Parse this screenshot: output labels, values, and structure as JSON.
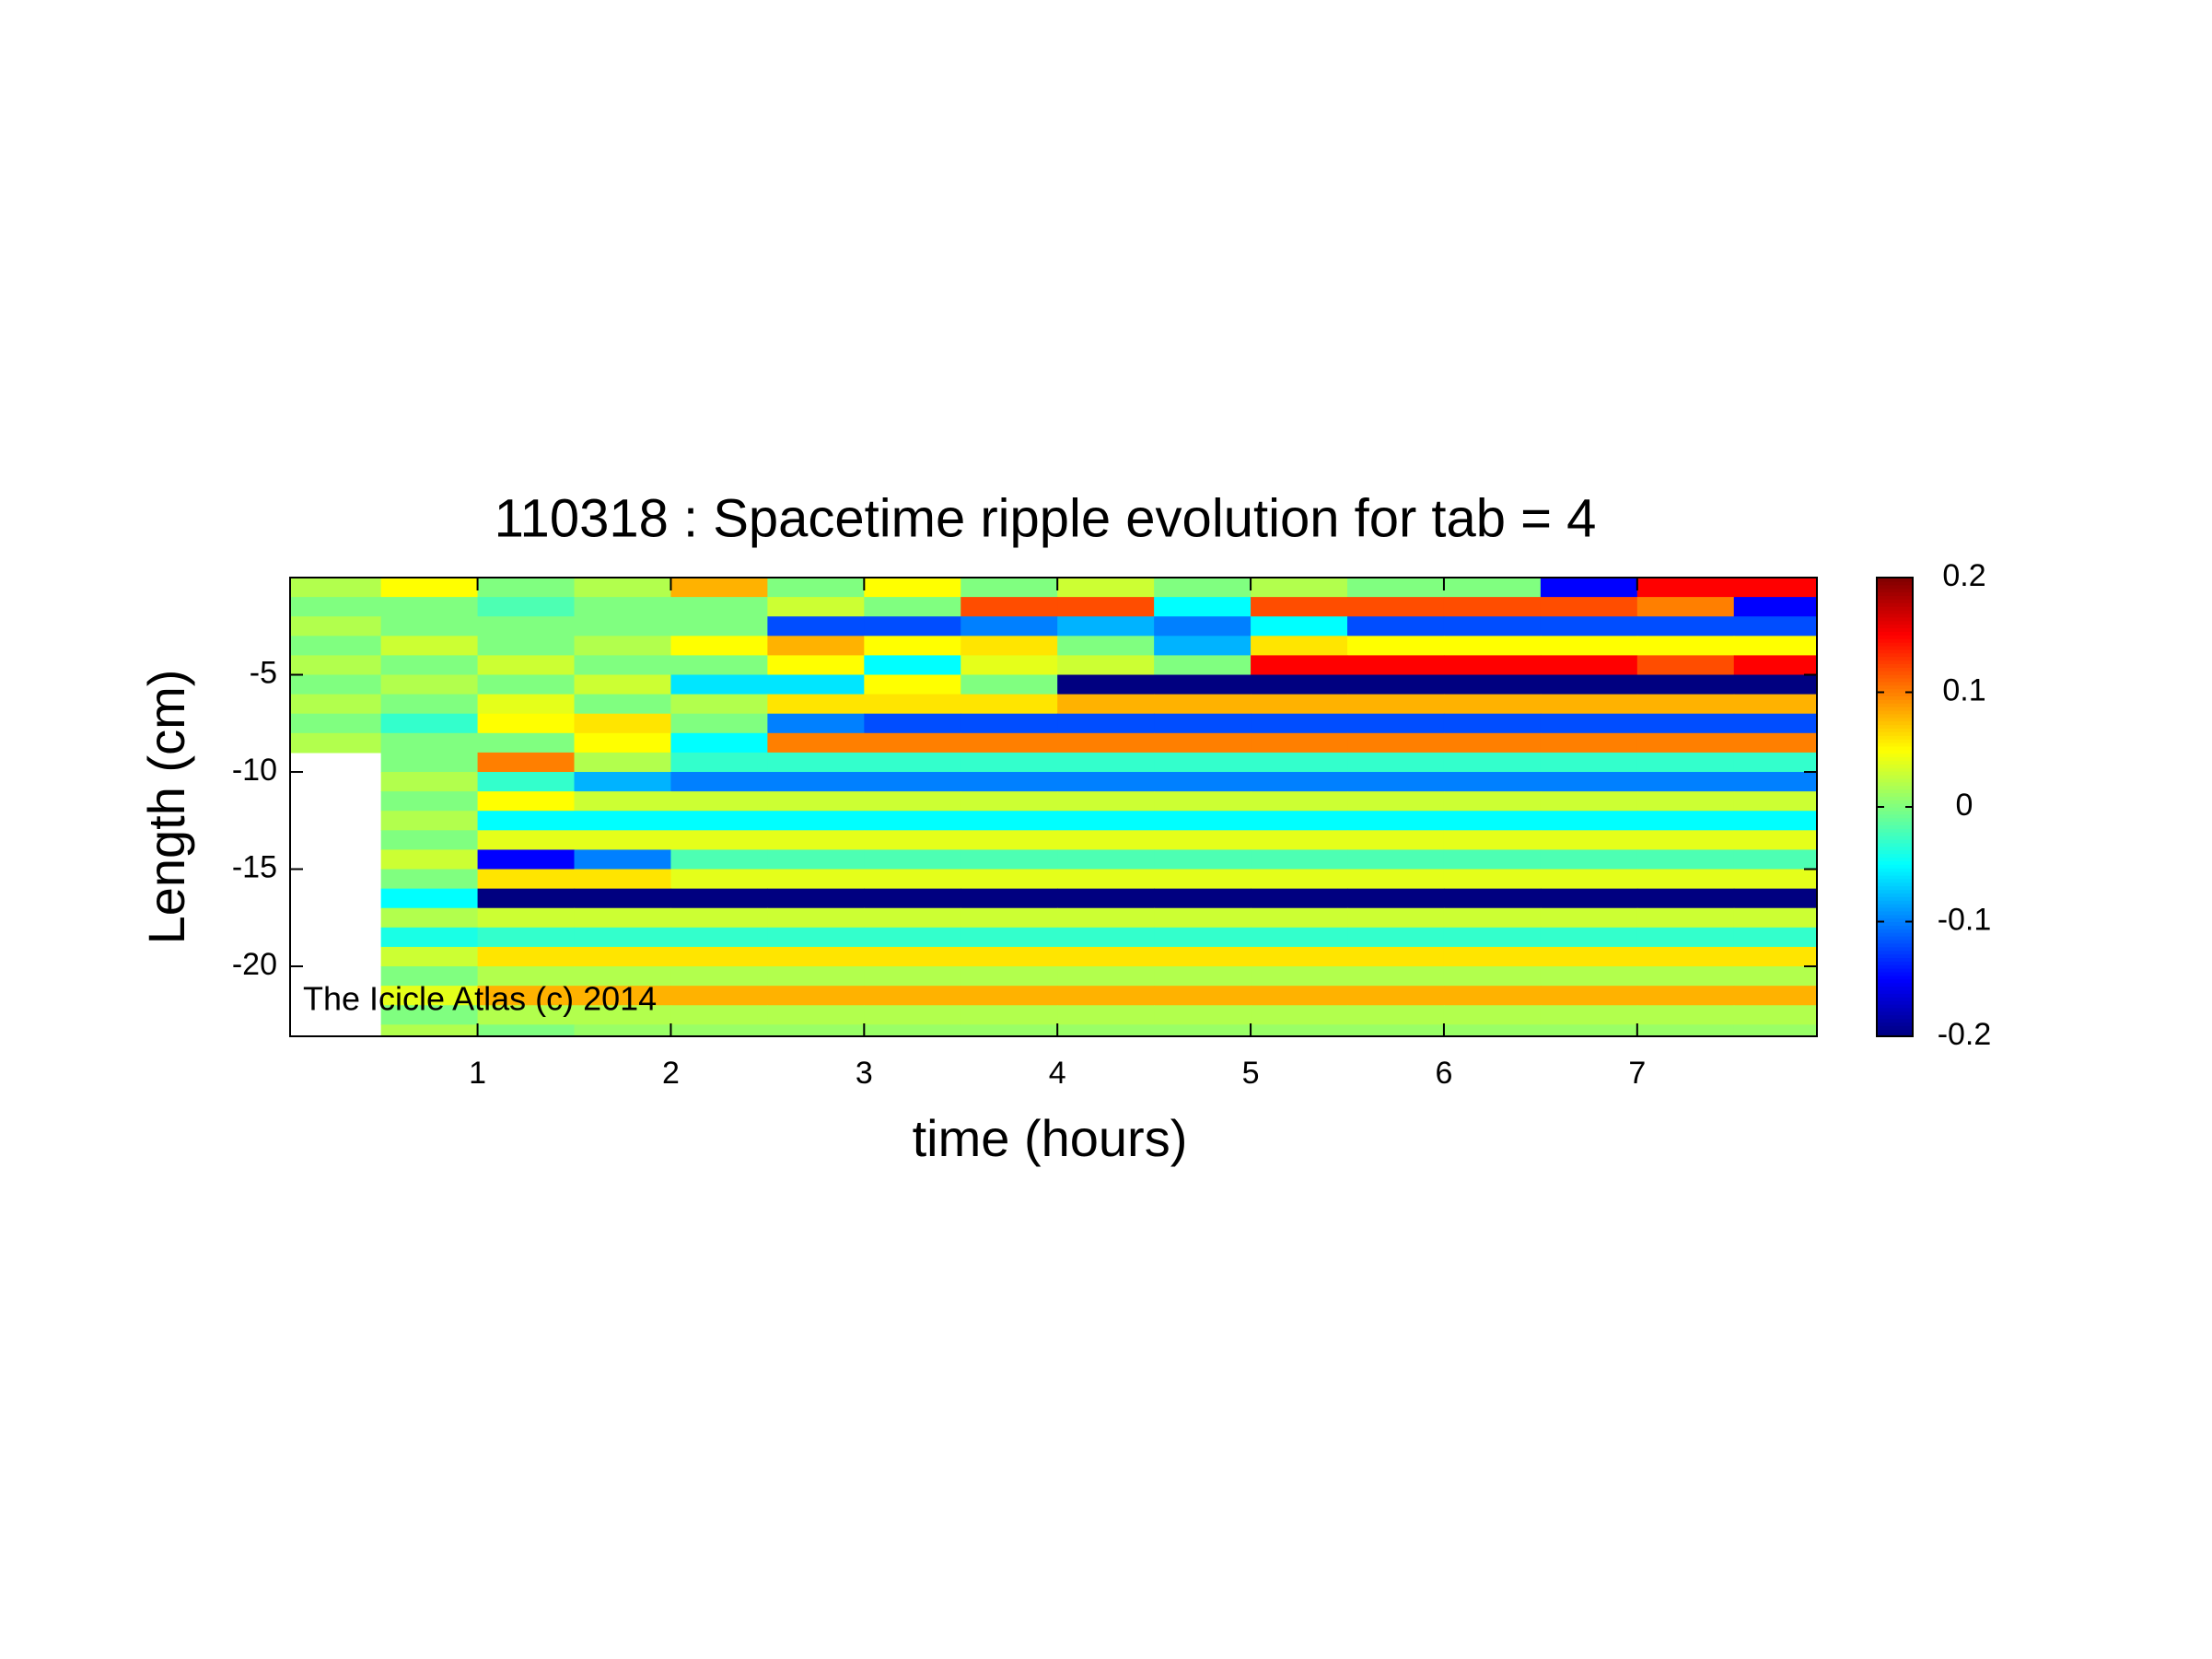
{
  "chart_data": {
    "type": "heatmap",
    "title": "110318 : Spacetime ripple evolution for tab = 4",
    "x_label": "time (hours)",
    "y_label": "Length (cm)",
    "annotation": "The Icicle Atlas (c) 2014",
    "colormap": "jet",
    "x": [
      0.25,
      0.75,
      1.25,
      1.75,
      2.25,
      2.75,
      3.25,
      3.75,
      4.25,
      4.75,
      5.25,
      5.75,
      6.25,
      6.75,
      7.25,
      7.75
    ],
    "y": [
      -0.5,
      -1.5,
      -2.5,
      -3.5,
      -4.5,
      -5.5,
      -6.5,
      -7.5,
      -8.5,
      -9.5,
      -10.5,
      -11.5,
      -12.5,
      -13.5,
      -14.5,
      -15.5,
      -16.5,
      -17.5,
      -18.5,
      -19.5,
      -20.5,
      -21.5,
      -22.5,
      -23.5
    ],
    "z": [
      [
        0.02,
        0.05,
        0,
        0.02,
        0.08,
        0,
        0.05,
        0,
        0.03,
        0,
        0.02,
        0,
        0,
        -0.15,
        0.15,
        0.15
      ],
      [
        0,
        0,
        -0.02,
        0,
        0,
        0.03,
        0,
        0.12,
        0.12,
        -0.05,
        0.12,
        0.12,
        0.12,
        0.12,
        0.1,
        -0.15
      ],
      [
        0.02,
        0,
        0,
        0,
        0,
        -0.12,
        -0.12,
        -0.1,
        -0.08,
        -0.1,
        -0.05,
        -0.12,
        -0.12,
        -0.12,
        -0.12,
        -0.12
      ],
      [
        0,
        0.03,
        0,
        0.02,
        0.05,
        0.08,
        0.05,
        0.06,
        0,
        -0.08,
        0.06,
        0.05,
        0.05,
        0.05,
        0.05,
        0.05
      ],
      [
        0.02,
        0,
        0.03,
        0,
        0,
        0.05,
        -0.05,
        0.04,
        0.03,
        0,
        0.15,
        0.15,
        0.15,
        0.15,
        0.12,
        0.15
      ],
      [
        0,
        0.02,
        0,
        0.03,
        -0.06,
        -0.06,
        0.05,
        0,
        -0.2,
        -0.2,
        -0.2,
        -0.2,
        -0.2,
        -0.2,
        -0.2,
        -0.2
      ],
      [
        0.02,
        0,
        0.04,
        0,
        0.02,
        0.06,
        0.06,
        0.06,
        0.08,
        0.08,
        0.08,
        0.08,
        0.08,
        0.08,
        0.08,
        0.08
      ],
      [
        0,
        -0.03,
        0.05,
        0.06,
        0,
        -0.1,
        -0.12,
        -0.12,
        -0.12,
        -0.12,
        -0.12,
        -0.12,
        -0.12,
        -0.12,
        -0.12,
        -0.12
      ],
      [
        0.02,
        0,
        0,
        0.05,
        -0.05,
        0.1,
        0.1,
        0.1,
        0.1,
        0.1,
        0.1,
        0.1,
        0.1,
        0.1,
        0.1,
        0.1
      ],
      [
        null,
        0,
        0.1,
        0.02,
        -0.03,
        -0.03,
        -0.03,
        -0.03,
        -0.03,
        -0.03,
        -0.03,
        -0.03,
        -0.03,
        -0.03,
        -0.03,
        -0.03
      ],
      [
        null,
        0.02,
        -0.03,
        -0.08,
        -0.1,
        -0.1,
        -0.1,
        -0.1,
        -0.1,
        -0.1,
        -0.1,
        -0.1,
        -0.1,
        -0.1,
        -0.1,
        -0.1
      ],
      [
        null,
        0,
        0.05,
        0.03,
        0.03,
        0.03,
        0.03,
        0.03,
        0.03,
        0.03,
        0.03,
        0.03,
        0.03,
        0.03,
        0.03,
        0.03
      ],
      [
        null,
        0.02,
        -0.05,
        -0.05,
        -0.05,
        -0.05,
        -0.05,
        -0.05,
        -0.05,
        -0.05,
        -0.05,
        -0.05,
        -0.05,
        -0.05,
        -0.05,
        -0.05
      ],
      [
        null,
        0,
        0.04,
        0.04,
        0.04,
        0.04,
        0.04,
        0.04,
        0.04,
        0.04,
        0.04,
        0.04,
        0.04,
        0.04,
        0.04,
        0.04
      ],
      [
        null,
        0.03,
        -0.15,
        -0.1,
        -0.02,
        -0.02,
        -0.02,
        -0.02,
        -0.02,
        -0.02,
        -0.02,
        -0.02,
        -0.02,
        -0.02,
        -0.02,
        -0.02
      ],
      [
        null,
        0,
        0.06,
        0.06,
        0.04,
        0.04,
        0.04,
        0.04,
        0.04,
        0.04,
        0.04,
        0.04,
        0.04,
        0.04,
        0.04,
        0.04
      ],
      [
        null,
        -0.05,
        -0.2,
        -0.2,
        -0.2,
        -0.2,
        -0.2,
        -0.2,
        -0.2,
        -0.2,
        -0.2,
        -0.2,
        -0.2,
        -0.2,
        -0.2,
        -0.2
      ],
      [
        null,
        0.02,
        0.03,
        0.03,
        0.03,
        0.03,
        0.03,
        0.03,
        0.03,
        0.03,
        0.03,
        0.03,
        0.03,
        0.03,
        0.03,
        0.03
      ],
      [
        null,
        -0.04,
        -0.03,
        -0.03,
        -0.03,
        -0.03,
        -0.03,
        -0.03,
        -0.03,
        -0.03,
        -0.03,
        -0.03,
        -0.03,
        -0.03,
        -0.03,
        -0.03
      ],
      [
        null,
        0.03,
        0.06,
        0.06,
        0.06,
        0.06,
        0.06,
        0.06,
        0.06,
        0.06,
        0.06,
        0.06,
        0.06,
        0.06,
        0.06,
        0.06
      ],
      [
        null,
        0,
        0.02,
        0.02,
        0.02,
        0.02,
        0.02,
        0.02,
        0.02,
        0.02,
        0.02,
        0.02,
        0.02,
        0.02,
        0.02,
        0.02
      ],
      [
        null,
        0.04,
        0.08,
        0.08,
        0.08,
        0.08,
        0.08,
        0.08,
        0.08,
        0.08,
        0.08,
        0.08,
        0.08,
        0.08,
        0.08,
        0.08
      ],
      [
        null,
        0,
        0.02,
        0.02,
        0.02,
        0.02,
        0.02,
        0.02,
        0.02,
        0.02,
        0.02,
        0.02,
        0.02,
        0.02,
        0.02,
        0.02
      ],
      [
        null,
        0.02,
        0,
        0.01,
        0.01,
        0.01,
        0.01,
        0.01,
        0.01,
        0.01,
        0.01,
        0.01,
        0.01,
        0.01,
        0.01,
        0.01
      ]
    ],
    "xlim": [
      0.03,
      7.93
    ],
    "ylim": [
      -23.6,
      0
    ],
    "xticks": [
      1,
      2,
      3,
      4,
      5,
      6,
      7
    ],
    "yticks": [
      -5,
      -10,
      -15,
      -20
    ],
    "clim": [
      -0.2,
      0.2
    ],
    "cticks": [
      -0.2,
      -0.1,
      0,
      0.1,
      0.2
    ]
  }
}
